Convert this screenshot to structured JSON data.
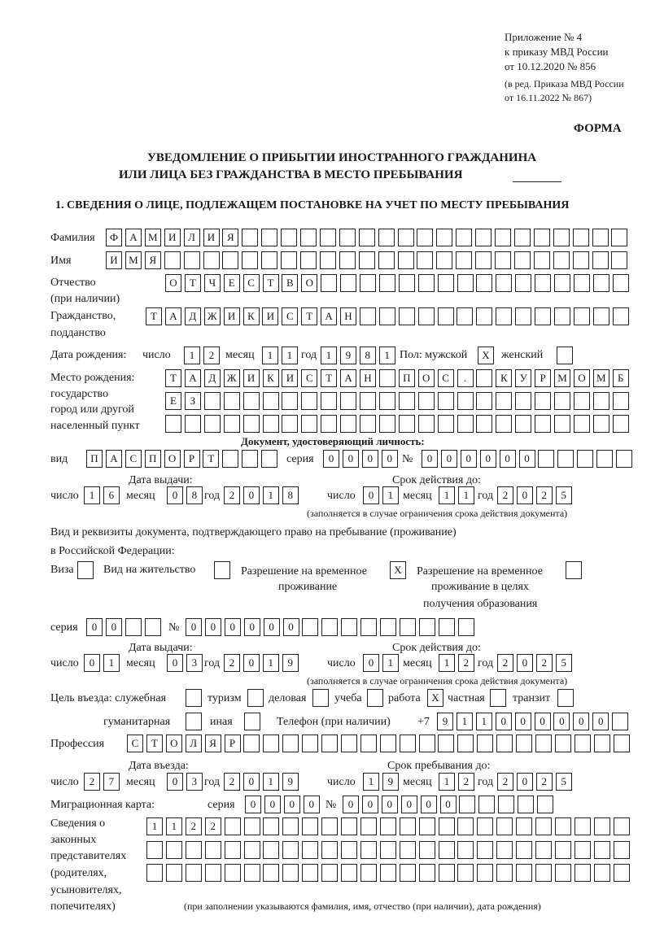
{
  "header": {
    "appendix": [
      "Приложение № 4",
      "к приказу МВД России",
      "от 10.12.2020 № 856"
    ],
    "edition": [
      "(в ред. Приказа МВД России",
      "от 16.11.2022 № 867)"
    ],
    "forma": "ФОРМА",
    "title_line1": "УВЕДОМЛЕНИЕ О ПРИБЫТИИ ИНОСТРАННОГО ГРАЖДАНИНА",
    "title_line2": "ИЛИ ЛИЦА БЕЗ ГРАЖДАНСТВА В МЕСТО ПРЕБЫВАНИЯ",
    "section1": "1. СВЕДЕНИЯ О ЛИЦЕ, ПОДЛЕЖАЩЕМ ПОСТАНОВКЕ НА УЧЕТ ПО МЕСТУ ПРЕБЫВАНИЯ"
  },
  "labels": {
    "surname": "Фамилия",
    "name": "Имя",
    "patronymic": "Отчество",
    "patronymic_note": "(при наличии)",
    "citizenship": "Гражданство,",
    "citizenship2": "подданство",
    "birth_date": "Дата рождения:",
    "day": "число",
    "month": "месяц",
    "year": "год",
    "sex": "Пол: мужской",
    "female": "женский",
    "birth_place": "Место рождения:",
    "birth_place2": "государство",
    "birth_place3": "город или другой",
    "birth_place4": "населенный пункт",
    "id_doc": "Документ, удостоверяющий личность:",
    "kind": "вид",
    "series": "серия",
    "number": "№",
    "issue_date": "Дата выдачи:",
    "valid_until": "Срок действия до:",
    "valid_note": "(заполняется в случае ограничения срока действия документа)",
    "stay_doc": "Вид и реквизиты документа, подтверждающего право на пребывание (проживание)",
    "stay_doc2": "в Российской Федерации:",
    "visa": "Виза",
    "residence": "Вид на жительство",
    "temp_res": "Разрешение на временное",
    "temp_res2": "проживание",
    "temp_edu": "Разрешение на временное",
    "temp_edu2": "проживание в целях",
    "temp_edu3": "получения образования",
    "purpose": "Цель въезда: служебная",
    "tourism": "туризм",
    "business": "деловая",
    "study": "учеба",
    "work": "работа",
    "private": "частная",
    "transit": "транзит",
    "humanitarian": "гуманитарная",
    "other": "иная",
    "phone": "Телефон (при наличии)",
    "phone_prefix": "+7",
    "profession": "Профессия",
    "entry_date": "Дата въезда:",
    "stay_until": "Срок пребывания до:",
    "migration_card": "Миграционная карта:",
    "reps": [
      "Сведения о",
      "законных",
      "представителях",
      "(родителях,",
      "усыновителях,",
      "попечителях)"
    ],
    "reps_note": "(при заполнении указываются фамилия, имя, отчество (при наличии), дата рождения)"
  },
  "person": {
    "surname": "ФАМИЛИЯ",
    "name": "ИМЯ",
    "patronymic": "ОТЧЕСТВО",
    "citizenship": "ТАДЖИКИСТАН",
    "birth_day": "12",
    "birth_month": "11",
    "birth_year": "1981",
    "male": "X",
    "female": "",
    "birth_place1": "ТАДЖИКИСТАН ПОС. КУРМОМБ",
    "birth_place2": "ЕЗ",
    "birth_place3": ""
  },
  "id_document": {
    "kind": "ПАСПОРТ",
    "series": "0000",
    "number": "000000",
    "issue_day": "16",
    "issue_month": "08",
    "issue_year": "2018",
    "valid_day": "01",
    "valid_month": "11",
    "valid_year": "2025"
  },
  "stay_document": {
    "visa": "",
    "residence": "",
    "temp_res": "X",
    "temp_edu": "",
    "series": "00",
    "number": "000000",
    "issue_day": "01",
    "issue_month": "03",
    "issue_year": "2019",
    "valid_day": "01",
    "valid_month": "12",
    "valid_year": "2025"
  },
  "purpose": {
    "official": "",
    "tourism": "",
    "business": "",
    "study": "",
    "work": "X",
    "private": "",
    "transit": "",
    "humanitarian": "",
    "other": ""
  },
  "phone": "911000000",
  "profession": "СТОЛЯР",
  "entry": {
    "entry_day": "27",
    "entry_month": "03",
    "entry_year": "2019",
    "stay_day": "19",
    "stay_month": "12",
    "stay_year": "2025"
  },
  "migration_card": {
    "series": "0000",
    "number": "000000"
  },
  "representatives": [
    "1122",
    "",
    ""
  ]
}
